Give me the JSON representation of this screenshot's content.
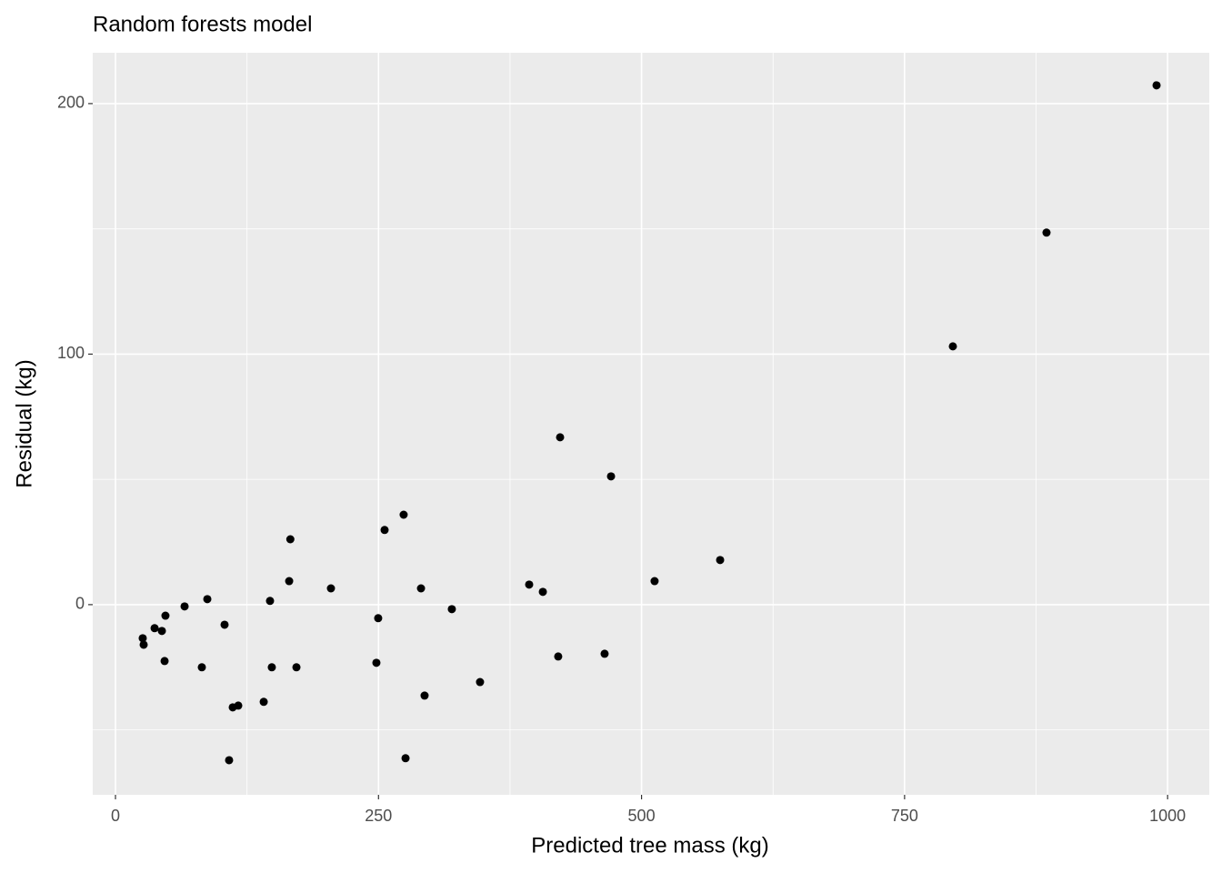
{
  "chart_data": {
    "type": "scatter",
    "title": "Random forests model",
    "x_label": "Predicted tree mass (kg)",
    "y_label": "Residual (kg)",
    "color": "#000000",
    "x": [
      989.5,
      884.9,
      795.9,
      422.6,
      471.0,
      574.7,
      512.4,
      273.9,
      255.8,
      166.2,
      165.1,
      204.8,
      290.4,
      393.2,
      406.2,
      319.7,
      249.7,
      146.9,
      87.3,
      65.7,
      47.5,
      37.2,
      44.1,
      25.9,
      26.8,
      46.7,
      103.7,
      82.1,
      148.6,
      172.0,
      248.0,
      420.8,
      464.9,
      346.5,
      293.8,
      140.9,
      116.7,
      111.5,
      108.0,
      275.7
    ],
    "values": [
      207.3,
      148.5,
      103.1,
      66.8,
      51.2,
      17.8,
      9.4,
      35.9,
      29.8,
      26.1,
      9.4,
      6.5,
      6.5,
      8.0,
      5.1,
      -1.8,
      -5.4,
      1.5,
      2.2,
      -0.7,
      -4.4,
      -9.4,
      -10.5,
      -13.4,
      -16.0,
      -22.5,
      -8.0,
      -25.0,
      -25.0,
      -25.0,
      -23.2,
      -20.7,
      -19.6,
      -30.9,
      -36.3,
      -38.8,
      -40.3,
      -41.0,
      -62.1,
      -61.3
    ],
    "xlim": [
      -21.6,
      1039.6
    ],
    "ylim": [
      -75.9,
      220.3
    ],
    "xticks": [
      0,
      250,
      500,
      750,
      1000
    ],
    "yticks": [
      0,
      100,
      200
    ],
    "grid": true
  }
}
